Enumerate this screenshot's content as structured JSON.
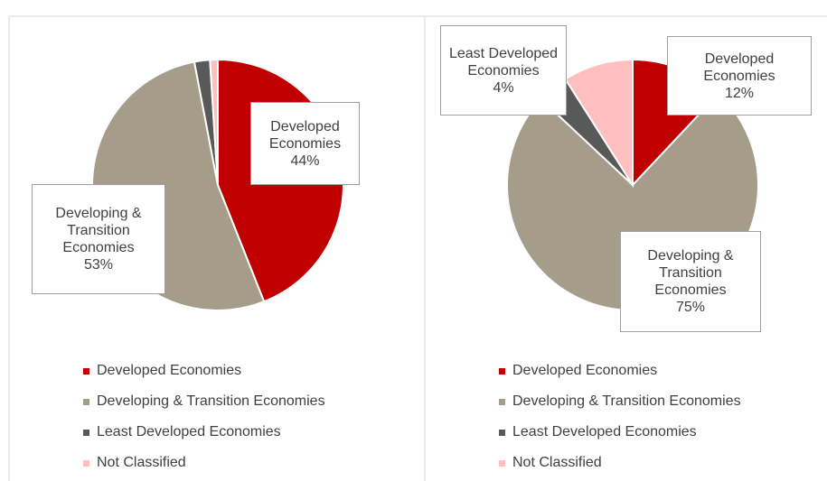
{
  "chart_data": [
    {
      "type": "pie",
      "categories": [
        "Developed Economies",
        "Developing & Transition Economies",
        "Least Developed Economies",
        "Not Classified"
      ],
      "values": [
        44,
        53,
        2,
        1
      ],
      "value_labels": [
        "44%",
        "53%",
        null,
        null
      ],
      "colors": [
        "#c00000",
        "#a59d8a",
        "#595959",
        "#ffbfc0"
      ],
      "legend": "bottom"
    },
    {
      "type": "pie",
      "categories": [
        "Developed Economies",
        "Developing & Transition Economies",
        "Least Developed Economies",
        "Not Classified"
      ],
      "values": [
        12,
        75,
        4,
        9
      ],
      "value_labels": [
        "12%",
        "75%",
        "4%",
        null
      ],
      "colors": [
        "#c00000",
        "#a59d8a",
        "#595959",
        "#ffbfc0"
      ],
      "legend": "bottom"
    }
  ]
}
